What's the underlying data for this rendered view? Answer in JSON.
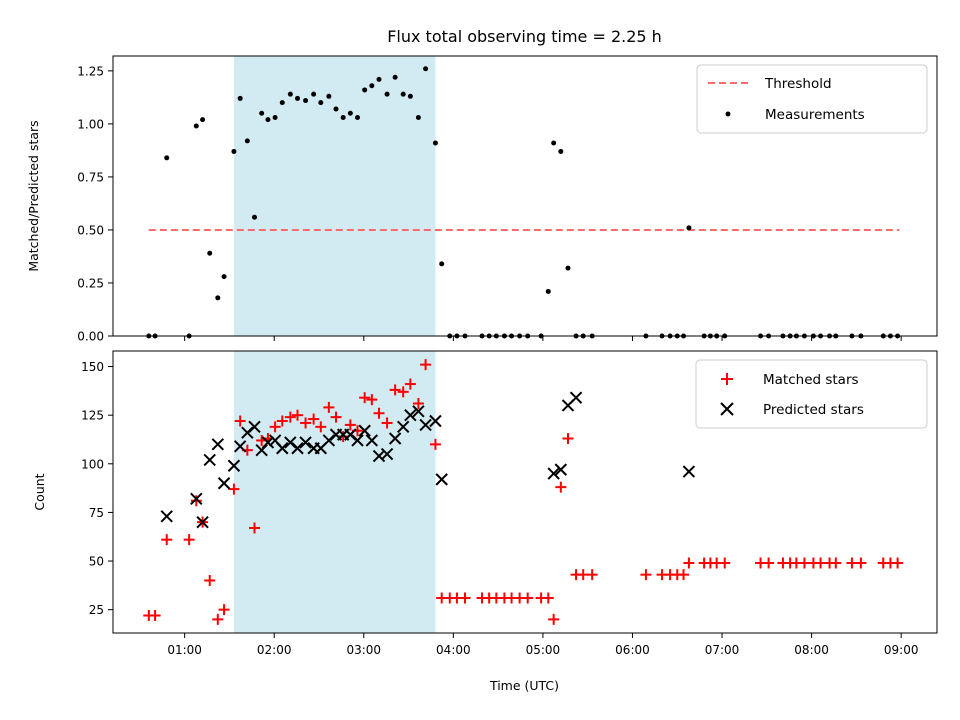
{
  "title": "Flux total observing time = 2.25 h",
  "chart_data": [
    {
      "type": "scatter",
      "panel": "top",
      "ylabel": "Matched/Predicted stars",
      "xlim": [
        0.2,
        9.4
      ],
      "ylim": [
        0,
        1.32
      ],
      "yticks": [
        0,
        0.25,
        0.5,
        0.75,
        1.0,
        1.25
      ],
      "ytick_labels": [
        "0.00",
        "0.25",
        "0.50",
        "0.75",
        "1.00",
        "1.25"
      ],
      "shaded_span": [
        1.55,
        3.8
      ],
      "shaded_color": "#add8e6",
      "threshold": {
        "name": "Threshold",
        "y": 0.5,
        "x_range": [
          0.6,
          8.98
        ],
        "color": "#ff6b6b"
      },
      "series": [
        {
          "name": "Measurements",
          "color": "#000000",
          "x": [
            0.6,
            0.67,
            0.8,
            1.05,
            1.13,
            1.2,
            1.28,
            1.37,
            1.44,
            1.55,
            1.62,
            1.7,
            1.78,
            1.86,
            1.93,
            2.01,
            2.09,
            2.18,
            2.26,
            2.35,
            2.44,
            2.52,
            2.61,
            2.69,
            2.77,
            2.85,
            2.93,
            3.01,
            3.09,
            3.17,
            3.26,
            3.35,
            3.44,
            3.52,
            3.61,
            3.69,
            3.8,
            3.87,
            3.96,
            4.04,
            4.13,
            4.32,
            4.4,
            4.48,
            4.57,
            4.65,
            4.74,
            4.83,
            4.98,
            5.06,
            5.12,
            5.2,
            5.28,
            5.37,
            5.45,
            5.55,
            6.15,
            6.33,
            6.42,
            6.5,
            6.57,
            6.63,
            6.8,
            6.87,
            6.94,
            7.03,
            7.43,
            7.52,
            7.68,
            7.76,
            7.83,
            7.92,
            8.02,
            8.1,
            8.2,
            8.27,
            8.45,
            8.55,
            8.8,
            8.88,
            8.96
          ],
          "y": [
            0,
            0,
            0.84,
            0,
            0.99,
            1.02,
            0.39,
            0.18,
            0.28,
            0.87,
            1.12,
            0.92,
            0.56,
            1.05,
            1.02,
            1.03,
            1.1,
            1.14,
            1.12,
            1.11,
            1.14,
            1.1,
            1.13,
            1.07,
            1.03,
            1.05,
            1.03,
            1.16,
            1.18,
            1.21,
            1.14,
            1.22,
            1.14,
            1.13,
            1.03,
            1.26,
            0.91,
            0.34,
            0,
            0,
            0,
            0,
            0,
            0,
            0,
            0,
            0,
            0,
            0,
            0.21,
            0.91,
            0.87,
            0.32,
            0,
            0,
            0,
            0,
            0,
            0,
            0,
            0,
            0.51,
            0,
            0,
            0,
            0,
            0,
            0,
            0,
            0,
            0,
            0,
            0,
            0,
            0,
            0,
            0,
            0,
            0,
            0,
            0
          ]
        }
      ],
      "legend": {
        "placement": "top-right",
        "entries": [
          "Threshold",
          "Measurements"
        ]
      }
    },
    {
      "type": "scatter",
      "panel": "bottom",
      "xlabel": "Time (UTC)",
      "ylabel": "Count",
      "xlim": [
        0.2,
        9.4
      ],
      "ylim": [
        13,
        158
      ],
      "xticks": [
        1,
        2,
        3,
        4,
        5,
        6,
        7,
        8,
        9
      ],
      "xtick_labels": [
        "01:00",
        "02:00",
        "03:00",
        "04:00",
        "05:00",
        "06:00",
        "07:00",
        "08:00",
        "09:00"
      ],
      "yticks": [
        25,
        50,
        75,
        100,
        125,
        150
      ],
      "ytick_labels": [
        "25",
        "50",
        "75",
        "100",
        "125",
        "150"
      ],
      "shaded_span": [
        1.55,
        3.8
      ],
      "shaded_color": "#add8e6",
      "series": [
        {
          "name": "Matched stars",
          "marker": "+",
          "color": "#ff0000",
          "x": [
            0.6,
            0.67,
            0.8,
            1.05,
            1.13,
            1.2,
            1.28,
            1.37,
            1.44,
            1.55,
            1.62,
            1.7,
            1.78,
            1.86,
            1.93,
            2.01,
            2.09,
            2.18,
            2.26,
            2.35,
            2.44,
            2.52,
            2.61,
            2.69,
            2.77,
            2.85,
            2.93,
            3.01,
            3.09,
            3.17,
            3.26,
            3.35,
            3.44,
            3.52,
            3.61,
            3.69,
            3.8,
            3.87,
            3.96,
            4.04,
            4.13,
            4.32,
            4.4,
            4.48,
            4.57,
            4.65,
            4.74,
            4.83,
            4.98,
            5.06,
            5.12,
            5.2,
            5.28,
            5.37,
            5.45,
            5.55,
            6.15,
            6.33,
            6.42,
            6.5,
            6.57,
            6.63,
            6.8,
            6.87,
            6.94,
            7.03,
            7.43,
            7.52,
            7.68,
            7.76,
            7.83,
            7.92,
            8.02,
            8.1,
            8.2,
            8.27,
            8.45,
            8.55,
            8.8,
            8.88,
            8.96
          ],
          "y": [
            22,
            22,
            61,
            61,
            81,
            70,
            40,
            20,
            25,
            87,
            122,
            107,
            67,
            112,
            113,
            119,
            122,
            124,
            125,
            121,
            123,
            119,
            129,
            124,
            114,
            120,
            117,
            134,
            133,
            126,
            121,
            138,
            137,
            141,
            131,
            151,
            110,
            31,
            31,
            31,
            31,
            31,
            31,
            31,
            31,
            31,
            31,
            31,
            31,
            31,
            20,
            88,
            113,
            43,
            43,
            43,
            43,
            43,
            43,
            43,
            43,
            49,
            49,
            49,
            49,
            49,
            49,
            49,
            49,
            49,
            49,
            49,
            49,
            49,
            49,
            49,
            49,
            49,
            49,
            49,
            49
          ]
        },
        {
          "name": "Predicted stars",
          "marker": "x",
          "color": "#000000",
          "x": [
            0.8,
            1.13,
            1.2,
            1.28,
            1.37,
            1.44,
            1.55,
            1.62,
            1.7,
            1.78,
            1.86,
            1.93,
            2.01,
            2.09,
            2.18,
            2.26,
            2.35,
            2.44,
            2.52,
            2.61,
            2.69,
            2.77,
            2.85,
            2.93,
            3.01,
            3.09,
            3.17,
            3.26,
            3.35,
            3.44,
            3.52,
            3.61,
            3.69,
            3.8,
            3.87,
            5.12,
            5.2,
            5.28,
            5.37,
            6.63
          ],
          "y": [
            73,
            82,
            70,
            102,
            110,
            90,
            99,
            109,
            116,
            119,
            107,
            111,
            112,
            108,
            111,
            108,
            111,
            108,
            108,
            112,
            115,
            115,
            115,
            112,
            117,
            112,
            104,
            105,
            113,
            119,
            125,
            127,
            120,
            122,
            92,
            95,
            97,
            130,
            134,
            96
          ]
        }
      ],
      "legend": {
        "placement": "top-right",
        "entries": [
          "Matched stars",
          "Predicted stars"
        ]
      }
    }
  ]
}
